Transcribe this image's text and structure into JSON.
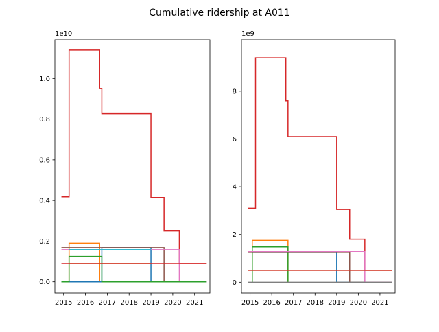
{
  "title": "Cumulative ridership at A011",
  "chart_data": [
    {
      "type": "line",
      "step": true,
      "offset_label": "1e10",
      "xlim": [
        2014.6,
        2021.7
      ],
      "ylim": [
        -0.055,
        1.19
      ],
      "xticks": [
        2015,
        2016,
        2017,
        2018,
        2019,
        2020,
        2021
      ],
      "xtick_labels": [
        "2015",
        "2016",
        "2017",
        "2018",
        "2019",
        "2020",
        "2021"
      ],
      "yticks": [
        0.0,
        0.2,
        0.4,
        0.6,
        0.8,
        1.0
      ],
      "ytick_labels": [
        "0.0",
        "0.2",
        "0.4",
        "0.6",
        "0.8",
        "1.0"
      ],
      "series": [
        {
          "color": "#d62728",
          "x": [
            2014.9,
            2015.25,
            2015.25,
            2016.65,
            2016.65,
            2016.75,
            2016.75,
            2019.0,
            2019.0,
            2019.6,
            2019.6,
            2020.3,
            2020.3,
            2021.55
          ],
          "y": [
            0.418,
            0.418,
            1.14,
            1.14,
            0.95,
            0.95,
            0.827,
            0.827,
            0.415,
            0.415,
            0.25,
            0.25,
            0.09,
            0.09
          ]
        },
        {
          "color": "#ff7f0e",
          "x": [
            2015.25,
            2015.25,
            2016.65,
            2016.65
          ],
          "y": [
            0.0,
            0.19,
            0.19,
            0.0
          ]
        },
        {
          "color": "#1f77b4",
          "x": [
            2014.9,
            2016.75,
            2016.75,
            2019.0,
            2019.0,
            2021.55
          ],
          "y": [
            0.0,
            0.0,
            0.168,
            0.168,
            0.0,
            0.0
          ]
        },
        {
          "color": "#8c564b",
          "x": [
            2014.9,
            2019.6,
            2019.6,
            2021.55
          ],
          "y": [
            0.168,
            0.168,
            0.0,
            0.0
          ]
        },
        {
          "color": "#e377c2",
          "x": [
            2014.9,
            2020.3,
            2020.3,
            2021.55
          ],
          "y": [
            0.158,
            0.158,
            0.0,
            0.0
          ]
        },
        {
          "color": "#17becf",
          "x": [
            2015.25,
            2019.0
          ],
          "y": [
            0.158,
            0.158
          ]
        },
        {
          "color": "#bcbd22",
          "x": [
            2015.25,
            2019.0
          ],
          "y": [
            0.09,
            0.09
          ]
        },
        {
          "color": "#2ca02c",
          "x": [
            2014.9,
            2015.25,
            2015.25,
            2016.75,
            2016.75,
            2021.55
          ],
          "y": [
            0.0,
            0.0,
            0.125,
            0.125,
            0.0,
            0.0
          ]
        },
        {
          "color": "#d62728",
          "x": [
            2014.9,
            2021.55
          ],
          "y": [
            0.09,
            0.09
          ]
        }
      ]
    },
    {
      "type": "line",
      "step": true,
      "offset_label": "1e9",
      "xlim": [
        2014.6,
        2021.7
      ],
      "ylim": [
        -0.45,
        10.15
      ],
      "xticks": [
        2015,
        2016,
        2017,
        2018,
        2019,
        2020,
        2021
      ],
      "xtick_labels": [
        "2015",
        "2016",
        "2017",
        "2018",
        "2019",
        "2020",
        "2021"
      ],
      "yticks": [
        0,
        2,
        4,
        6,
        8
      ],
      "ytick_labels": [
        "0",
        "2",
        "4",
        "6",
        "8"
      ],
      "series": [
        {
          "color": "#d62728",
          "x": [
            2014.9,
            2015.25,
            2015.25,
            2016.65,
            2016.65,
            2016.75,
            2016.75,
            2019.0,
            2019.0,
            2019.6,
            2019.6,
            2020.3,
            2020.3,
            2021.55
          ],
          "y": [
            3.1,
            3.1,
            9.4,
            9.4,
            7.6,
            7.6,
            6.1,
            6.1,
            3.05,
            3.05,
            1.8,
            1.8,
            0.5,
            0.5
          ]
        },
        {
          "color": "#ff7f0e",
          "x": [
            2015.1,
            2015.1,
            2016.75,
            2016.75
          ],
          "y": [
            0.0,
            1.75,
            1.75,
            0.0
          ]
        },
        {
          "color": "#2ca02c",
          "x": [
            2015.1,
            2015.1,
            2016.75,
            2016.75
          ],
          "y": [
            0.0,
            1.48,
            1.48,
            0.0
          ]
        },
        {
          "color": "#1f77b4",
          "x": [
            2015.1,
            2019.0,
            2019.0,
            2021.55
          ],
          "y": [
            1.25,
            1.25,
            0.0,
            0.0
          ]
        },
        {
          "color": "#8c564b",
          "x": [
            2014.9,
            2019.6,
            2019.6,
            2021.55
          ],
          "y": [
            1.25,
            1.25,
            0.0,
            0.0
          ]
        },
        {
          "color": "#e377c2",
          "x": [
            2014.9,
            2020.3,
            2020.3,
            2021.55
          ],
          "y": [
            1.28,
            1.28,
            0.0,
            0.0
          ]
        },
        {
          "color": "#bcbd22",
          "x": [
            2014.9,
            2021.55
          ],
          "y": [
            0.5,
            0.5
          ]
        },
        {
          "color": "#7f7f7f",
          "x": [
            2014.9,
            2021.55
          ],
          "y": [
            0.0,
            0.0
          ]
        },
        {
          "color": "#d62728",
          "x": [
            2014.9,
            2021.55
          ],
          "y": [
            0.5,
            0.5
          ]
        }
      ]
    }
  ]
}
